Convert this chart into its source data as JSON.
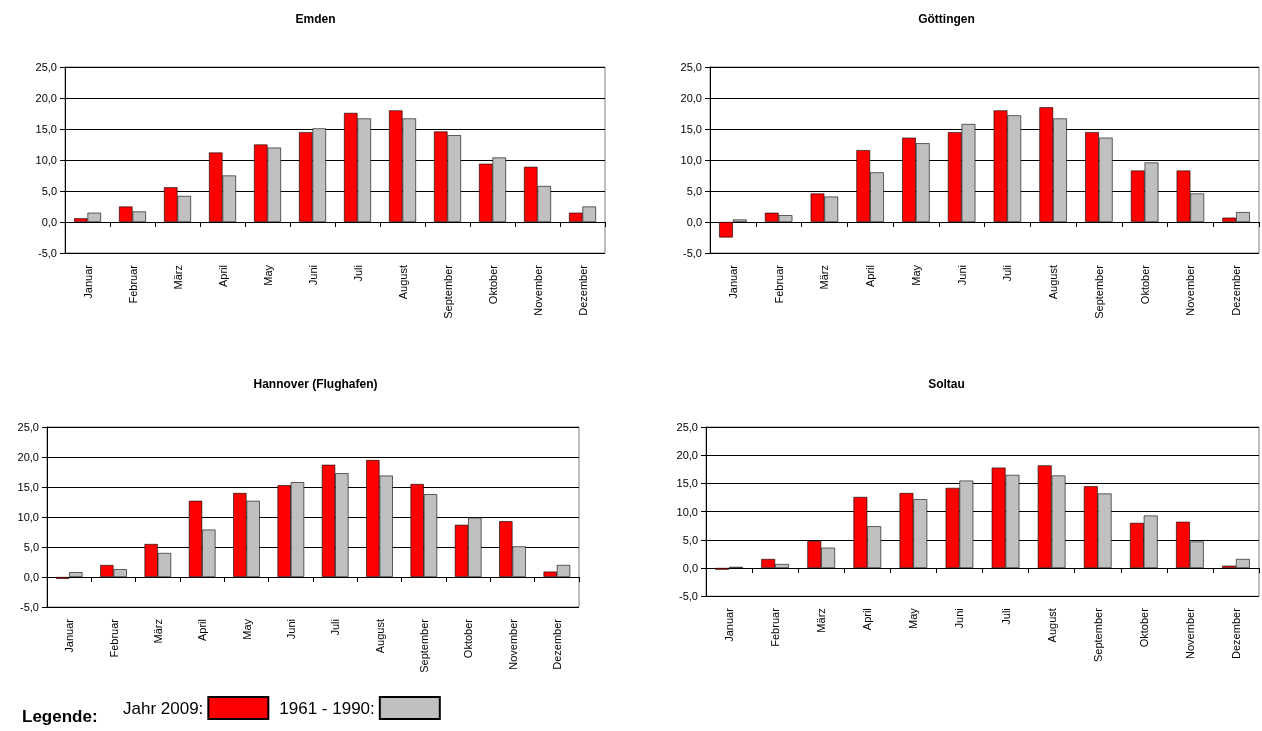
{
  "chart_data": [
    {
      "type": "bar",
      "title": "Emden",
      "categories": [
        "Januar",
        "Februar",
        "März",
        "April",
        "May",
        "Juni",
        "Juli",
        "August",
        "September",
        "Oktober",
        "November",
        "Dezember"
      ],
      "series": [
        {
          "color": "#ff0000",
          "values": [
            0.6,
            2.5,
            5.6,
            11.2,
            12.5,
            14.5,
            17.6,
            18.0,
            14.6,
            9.4,
            8.9,
            1.5
          ]
        },
        {
          "color": "#c0c0c0",
          "values": [
            1.5,
            1.7,
            4.2,
            7.5,
            12.0,
            15.1,
            16.7,
            16.7,
            14.0,
            10.4,
            5.8,
            2.5
          ]
        }
      ],
      "ylim": [
        -5,
        25
      ],
      "yticks": [
        {
          "value": -5,
          "label": "-5,0"
        },
        {
          "value": 0,
          "label": "0,0"
        },
        {
          "value": 5,
          "label": "5,0"
        },
        {
          "value": 10,
          "label": "10,0"
        },
        {
          "value": 15,
          "label": "15,0"
        },
        {
          "value": 20,
          "label": "20,0"
        },
        {
          "value": 25,
          "label": "25,0"
        }
      ],
      "grid": "y"
    },
    {
      "type": "bar",
      "title": "Göttingen",
      "categories": [
        "Januar",
        "Februar",
        "März",
        "April",
        "May",
        "Juni",
        "Juli",
        "August",
        "September",
        "Oktober",
        "November",
        "Dezember"
      ],
      "series": [
        {
          "color": "#ff0000",
          "values": [
            -2.5,
            1.5,
            4.6,
            11.6,
            13.6,
            14.5,
            18.0,
            18.5,
            14.5,
            8.3,
            8.3,
            0.7
          ]
        },
        {
          "color": "#c0c0c0",
          "values": [
            0.4,
            1.1,
            4.1,
            8.0,
            12.7,
            15.8,
            17.2,
            16.7,
            13.6,
            9.6,
            4.6,
            1.6
          ]
        }
      ],
      "ylim": [
        -5,
        25
      ],
      "yticks": [
        {
          "value": -5,
          "label": "-5,0"
        },
        {
          "value": 0,
          "label": "0,0"
        },
        {
          "value": 5,
          "label": "5,0"
        },
        {
          "value": 10,
          "label": "10,0"
        },
        {
          "value": 15,
          "label": "15,0"
        },
        {
          "value": 20,
          "label": "20,0"
        },
        {
          "value": 25,
          "label": "25,0"
        }
      ],
      "grid": "y"
    },
    {
      "type": "bar",
      "title": "Hannover (Flughafen)",
      "categories": [
        "Januar",
        "Februar",
        "März",
        "April",
        "May",
        "Juni",
        "Juli",
        "August",
        "September",
        "Oktober",
        "November",
        "Dezember"
      ],
      "series": [
        {
          "name": "Jahr 2009:",
          "color": "#ff0000",
          "values": [
            -0.3,
            2.0,
            5.5,
            12.7,
            14.0,
            15.3,
            18.7,
            19.5,
            15.5,
            8.7,
            9.3,
            0.9
          ]
        },
        {
          "name": "1961 - 1990:",
          "color": "#c0c0c0",
          "values": [
            0.8,
            1.3,
            4.0,
            7.9,
            12.7,
            15.8,
            17.3,
            16.9,
            13.8,
            9.9,
            5.1,
            2.0
          ]
        }
      ],
      "ylim": [
        -5,
        25
      ],
      "yticks": [
        {
          "value": -5,
          "label": "-5,0"
        },
        {
          "value": 0,
          "label": "0,0"
        },
        {
          "value": 5,
          "label": "5,0"
        },
        {
          "value": 10,
          "label": "10,0"
        },
        {
          "value": 15,
          "label": "15,0"
        },
        {
          "value": 20,
          "label": "20,0"
        },
        {
          "value": 25,
          "label": "25,0"
        }
      ],
      "grid": "y",
      "legend": "bottom",
      "legend_title": "Legende:"
    },
    {
      "type": "bar",
      "title": "Soltau",
      "categories": [
        "Januar",
        "Februar",
        "März",
        "April",
        "May",
        "Juni",
        "Juli",
        "August",
        "September",
        "Oktober",
        "November",
        "Dezember"
      ],
      "series": [
        {
          "color": "#ff0000",
          "values": [
            -0.3,
            1.6,
            4.8,
            12.6,
            13.3,
            14.2,
            17.8,
            18.2,
            14.5,
            8.0,
            8.2,
            0.4
          ]
        },
        {
          "color": "#c0c0c0",
          "values": [
            0.2,
            0.7,
            3.6,
            7.4,
            12.2,
            15.5,
            16.5,
            16.4,
            13.2,
            9.3,
            4.7,
            1.6
          ]
        }
      ],
      "ylim": [
        -5,
        25
      ],
      "yticks": [
        {
          "value": -5,
          "label": "-5,0"
        },
        {
          "value": 0,
          "label": "0,0"
        },
        {
          "value": 5,
          "label": "5,0"
        },
        {
          "value": 10,
          "label": "10,0"
        },
        {
          "value": 15,
          "label": "15,0"
        },
        {
          "value": 20,
          "label": "20,0"
        },
        {
          "value": 25,
          "label": "25,0"
        }
      ],
      "grid": "y"
    }
  ]
}
